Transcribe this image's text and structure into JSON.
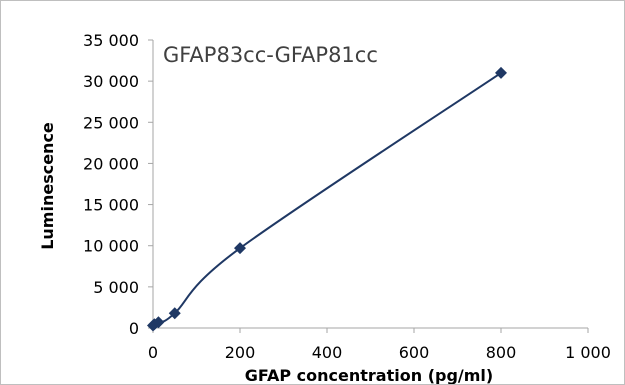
{
  "chart_data": {
    "type": "scatter",
    "title": "GFAP83cc-GFAP81cc",
    "xlabel": "GFAP concentration (pg/ml)",
    "ylabel": "Luminescence",
    "xlim": [
      0,
      1000
    ],
    "ylim": [
      0,
      35000
    ],
    "x_ticks": [
      0,
      200,
      400,
      600,
      800,
      1000
    ],
    "x_tick_labels": [
      "0",
      "200",
      "400",
      "600",
      "800",
      "1 000"
    ],
    "y_ticks": [
      0,
      5000,
      10000,
      15000,
      20000,
      25000,
      30000,
      35000
    ],
    "y_tick_labels": [
      "0",
      "5 000",
      "10 000",
      "15 000",
      "20 000",
      "25 000",
      "30 000",
      "35 000"
    ],
    "grid": false,
    "marker": "diamond",
    "smoothed_line": true,
    "series": [
      {
        "x": [
          0,
          3.125,
          12.5,
          50,
          200,
          800
        ],
        "y": [
          300,
          450,
          700,
          1800,
          9700,
          31000
        ],
        "color": "#1f3864"
      }
    ]
  }
}
